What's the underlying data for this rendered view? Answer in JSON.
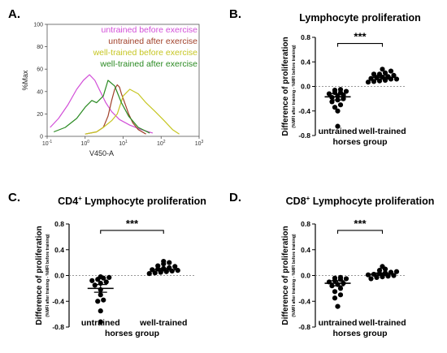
{
  "chart_data": [
    {
      "panel": "A.",
      "type": "line",
      "xlabel": "V450-A",
      "ylabel": "%Max",
      "xscale": "log",
      "xlim": [
        0.1,
        1000
      ],
      "ylim": [
        0,
        100
      ],
      "x_ticks": [
        "10",
        "10",
        "10",
        "10",
        "10"
      ],
      "x_tick_exponents": [
        "-1",
        "0",
        "1",
        "2",
        "3"
      ],
      "y_ticks": [
        "0",
        "20",
        "40",
        "60",
        "80",
        "100"
      ],
      "legend_position": "top-right",
      "series": [
        {
          "name": "untrained before exercise",
          "color": "#d24fd8",
          "x": [
            0.12,
            0.2,
            0.35,
            0.6,
            0.9,
            1.3,
            1.8,
            2.5,
            3.5,
            5,
            8,
            15,
            30,
            60
          ],
          "y": [
            8,
            16,
            28,
            42,
            50,
            55,
            50,
            40,
            30,
            22,
            15,
            10,
            6,
            3
          ]
        },
        {
          "name": "untrained after exercise",
          "color": "#a0402a",
          "x": [
            1,
            2,
            3,
            4,
            5,
            6,
            7,
            8,
            9,
            11,
            14,
            18,
            25,
            40
          ],
          "y": [
            2,
            4,
            8,
            18,
            32,
            42,
            46,
            44,
            38,
            30,
            20,
            12,
            6,
            2
          ]
        },
        {
          "name": "well-trained before exercise",
          "color": "#c6c622",
          "x": [
            1,
            2,
            3,
            5,
            7,
            10,
            15,
            25,
            40,
            70,
            120,
            200,
            300
          ],
          "y": [
            2,
            4,
            8,
            14,
            20,
            36,
            42,
            38,
            30,
            22,
            14,
            6,
            2
          ]
        },
        {
          "name": "well-trained after exercise",
          "color": "#2a8a22",
          "x": [
            0.15,
            0.3,
            0.6,
            1,
            1.5,
            2,
            3,
            4,
            6,
            9,
            14,
            25,
            50
          ],
          "y": [
            4,
            8,
            16,
            26,
            32,
            30,
            36,
            50,
            45,
            30,
            18,
            8,
            3
          ]
        }
      ]
    },
    {
      "panel": "B.",
      "type": "scatter",
      "title": "Lymphocyte proliferation",
      "ylabel": "Difference of proliferation",
      "ylabel_sub": "(%MFI after training - %MFI before training)",
      "xlabel": "horses group",
      "categories": [
        "untrained",
        "well-trained"
      ],
      "ylim": [
        -0.8,
        0.8
      ],
      "y_ticks": [
        "0.8",
        "0.4",
        "0.0",
        "-0.4",
        "-0.8"
      ],
      "significance": "***",
      "groups": [
        {
          "name": "untrained",
          "mean": -0.17,
          "sem": 0.05,
          "values": [
            -0.65,
            -0.4,
            -0.34,
            -0.3,
            -0.25,
            -0.22,
            -0.2,
            -0.18,
            -0.16,
            -0.14,
            -0.12,
            -0.1,
            -0.08,
            -0.06,
            -0.05,
            -0.1
          ]
        },
        {
          "name": "well-trained",
          "mean": 0.15,
          "sem": 0.03,
          "values": [
            0.28,
            0.25,
            0.22,
            0.2,
            0.18,
            0.16,
            0.15,
            0.14,
            0.13,
            0.12,
            0.1,
            0.09,
            0.08,
            0.07,
            0.2,
            0.12
          ]
        }
      ]
    },
    {
      "panel": "C.",
      "type": "scatter",
      "title_main": "CD4",
      "title_sup": "+",
      "title_rest": " Lymphocyte proliferation",
      "ylabel": "Difference of proliferation",
      "ylabel_sub": "(%MFI after training - %MFI before training)",
      "xlabel": "horses group",
      "categories": [
        "untrained",
        "well-trained"
      ],
      "ylim": [
        -0.8,
        0.8
      ],
      "y_ticks": [
        "0.8",
        "0.4",
        "0.0",
        "-0.4",
        "-0.8"
      ],
      "significance": "***",
      "groups": [
        {
          "name": "untrained",
          "mean": -0.2,
          "sem": 0.06,
          "values": [
            -0.72,
            -0.55,
            -0.4,
            -0.38,
            -0.3,
            -0.22,
            -0.15,
            -0.12,
            -0.08,
            -0.06,
            -0.04,
            -0.03,
            -0.02,
            -0.1
          ]
        },
        {
          "name": "well-trained",
          "mean": 0.09,
          "sem": 0.02,
          "values": [
            0.22,
            0.2,
            0.18,
            0.15,
            0.14,
            0.12,
            0.1,
            0.09,
            0.08,
            0.07,
            0.06,
            0.05,
            0.04,
            0.11,
            0.03
          ]
        }
      ]
    },
    {
      "panel": "D.",
      "type": "scatter",
      "title_main": "CD8",
      "title_sup": "+",
      "title_rest": " Lymphocyte proliferation",
      "ylabel": "Difference of proliferation",
      "ylabel_sub": "(%MFI after training - %MFI before training)",
      "xlabel": "horses group",
      "categories": [
        "untrained",
        "well-trained"
      ],
      "ylim": [
        -0.8,
        0.8
      ],
      "y_ticks": [
        "0.8",
        "0.4",
        "0.0",
        "-0.4",
        "-0.8"
      ],
      "significance": "***",
      "groups": [
        {
          "name": "untrained",
          "mean": -0.12,
          "sem": 0.04,
          "values": [
            -0.48,
            -0.35,
            -0.3,
            -0.25,
            -0.2,
            -0.16,
            -0.12,
            -0.1,
            -0.08,
            -0.06,
            -0.05,
            -0.04,
            -0.03,
            -0.14
          ]
        },
        {
          "name": "well-trained",
          "mean": 0.02,
          "sem": 0.02,
          "values": [
            0.14,
            0.1,
            0.08,
            0.06,
            0.04,
            0.03,
            0.02,
            0.0,
            -0.01,
            -0.02,
            -0.03,
            -0.05,
            0.05,
            0.01
          ]
        }
      ]
    }
  ]
}
